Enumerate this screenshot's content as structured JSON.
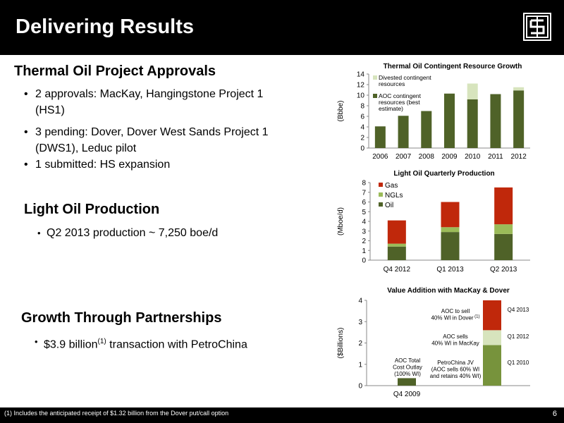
{
  "header": {
    "title": "Delivering Results",
    "logo_icon": "company-logo-icon"
  },
  "sections": [
    {
      "heading": "Thermal Oil Project Approvals",
      "bullets": [
        {
          "lines": [
            "2 approvals: MacKay, Hangingstone Project 1",
            "(HS1)"
          ]
        },
        {
          "lines": [
            "3 pending: Dover, Dover West Sands Project 1",
            "(DWS1), Leduc pilot"
          ]
        },
        {
          "lines": [
            "1 submitted: HS expansion"
          ]
        }
      ]
    },
    {
      "heading": "Light Oil Production",
      "bullets": [
        {
          "lines": [
            "Q2 2013 production ~ 7,250 boe/d"
          ]
        }
      ]
    },
    {
      "heading": "Growth Through Partnerships",
      "bullets": [
        {
          "pre": "$3.9 billion",
          "sup": "(1)",
          "post": " transaction with PetroChina"
        }
      ]
    }
  ],
  "footer": {
    "note": "(1) Includes the anticipated receipt of $1.32 billion from the Dover put/call option",
    "page": "6"
  },
  "colors": {
    "dark_green": "#4f6228",
    "light_green": "#c3d69b",
    "mid_green": "#77933c",
    "red": "#c0280b"
  },
  "chart_data": [
    {
      "type": "bar",
      "stacked": true,
      "title": "Thermal Oil Contingent Resource Growth",
      "ylabel": "(Bbbe)",
      "ylim": [
        0,
        14
      ],
      "yticks": [
        0,
        2,
        4,
        6,
        8,
        10,
        12,
        14
      ],
      "categories": [
        "2006",
        "2007",
        "2008",
        "2009",
        "2010",
        "2011",
        "2012"
      ],
      "series": [
        {
          "name": "AOC contingent resources (best estimate)",
          "legend_lines": [
            "AOC contingent",
            "resources (best",
            "estimate)"
          ],
          "color": "#4f6228",
          "values": [
            4.1,
            6.1,
            7.0,
            10.3,
            9.2,
            10.2,
            10.9
          ]
        },
        {
          "name": "Divested contingent resources",
          "legend_lines": [
            "Divested contingent",
            "resources"
          ],
          "color": "#d7e4bd",
          "values": [
            0,
            0,
            0,
            0,
            3.0,
            0,
            0.6
          ]
        }
      ]
    },
    {
      "type": "bar",
      "stacked": true,
      "title": "Light Oil Quarterly Production",
      "ylabel": "(Mboe/d)",
      "ylim": [
        0,
        8
      ],
      "yticks": [
        0,
        1,
        2,
        3,
        4,
        5,
        6,
        7,
        8
      ],
      "categories": [
        "Q4 2012",
        "Q1 2013",
        "Q2 2013"
      ],
      "series": [
        {
          "name": "Oil",
          "color": "#4f6228",
          "values": [
            1.4,
            2.9,
            2.7
          ]
        },
        {
          "name": "NGLs",
          "color": "#9bbb59",
          "values": [
            0.3,
            0.5,
            1.0
          ]
        },
        {
          "name": "Gas",
          "color": "#c0280b",
          "values": [
            2.4,
            2.6,
            3.8
          ]
        }
      ]
    },
    {
      "type": "bar",
      "stacked": true,
      "title": "Value Addition with MacKay & Dover",
      "ylabel": "($Billions)",
      "ylim": [
        0,
        4
      ],
      "yticks": [
        0,
        1,
        2,
        3,
        4
      ],
      "categories": [
        "Q4 2009",
        ""
      ],
      "segments": [
        {
          "col": 0,
          "start": 0,
          "value": 0.35,
          "color": "#4f6228"
        },
        {
          "col": 1,
          "start": 0,
          "value": 1.9,
          "color": "#77933c"
        },
        {
          "col": 1,
          "start": 1.9,
          "value": 0.7,
          "color": "#d7e4bd"
        },
        {
          "col": 1,
          "start": 2.6,
          "value": 1.4,
          "color": "#c0280b"
        }
      ],
      "annotations": [
        {
          "lines": [
            "AOC Total",
            "Cost Outlay",
            "(100% WI)"
          ]
        },
        {
          "lines": [
            "PetroChina JV",
            "(AOC sells 60% WI",
            "and retains 40% WI)"
          ]
        },
        {
          "lines": [
            "AOC sells",
            "40% WI in MacKay"
          ]
        },
        {
          "lines": [
            "AOC to sell",
            "40% WI in Dover"
          ],
          "sup": "(1)"
        }
      ],
      "segment_labels": [
        "Q1 2010",
        "Q1 2012",
        "Q4 2013"
      ]
    }
  ]
}
